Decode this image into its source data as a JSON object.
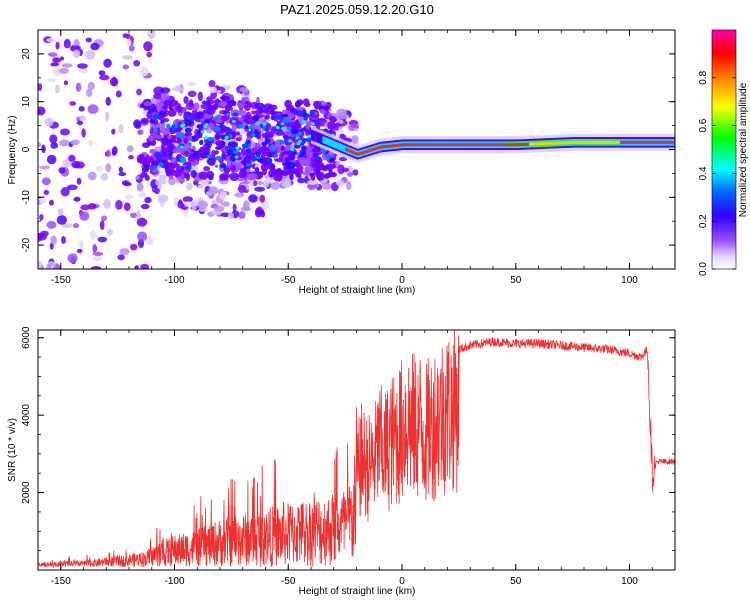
{
  "title": "PAZ1.2025.059.12.20.G10",
  "chart_data": [
    {
      "type": "heatmap",
      "title": "PAZ1.2025.059.12.20.G10",
      "xlabel": "Height of straight line (km)",
      "ylabel": "Frequency (Hz)",
      "xlim": [
        -160,
        120
      ],
      "ylim": [
        -25,
        25
      ],
      "xticks": [
        -150,
        -100,
        -50,
        0,
        50,
        100
      ],
      "xtick_labels": [
        "-150",
        "-100",
        "-50",
        "0",
        "50",
        "100"
      ],
      "yticks": [
        -20,
        -10,
        0,
        10,
        20
      ],
      "ytick_labels": [
        "-20",
        "-10",
        "0",
        "10",
        "20"
      ],
      "colorbar": {
        "label": "Normalized spectral amplitude",
        "range": [
          0,
          1
        ],
        "ticks": [
          0.0,
          0.2,
          0.4,
          0.6,
          0.8
        ],
        "tick_labels": [
          "0.0",
          "0.2",
          "0.4",
          "0.6",
          "0.8"
        ],
        "colors": [
          "#ffffff",
          "#e0ccff",
          "#8000ff",
          "#0000ff",
          "#00ffff",
          "#00ff00",
          "#ffff00",
          "#ff8000",
          "#ff0000",
          "#ff00aa"
        ]
      },
      "ridge": {
        "x": [
          -40,
          -30,
          -25,
          -20,
          -10,
          0,
          25,
          50,
          75,
          100,
          120
        ],
        "frequency": [
          3,
          1,
          0,
          -1,
          0.5,
          1,
          1,
          1,
          1.5,
          1.5,
          1.5
        ]
      }
    },
    {
      "type": "line",
      "xlabel": "Height of straight line (km)",
      "ylabel": "SNR (10 * v/v)",
      "xlim": [
        -160,
        120
      ],
      "ylim": [
        0,
        6200
      ],
      "xticks": [
        -150,
        -100,
        -50,
        0,
        50,
        100
      ],
      "xtick_labels": [
        "-150",
        "-100",
        "-50",
        "0",
        "50",
        "100"
      ],
      "yticks": [
        2000,
        4000,
        6000
      ],
      "ytick_labels": [
        "2000",
        "4000",
        "6000"
      ],
      "color": "#ee3030",
      "series": [
        {
          "x": [
            -160,
            -140,
            -120,
            -110,
            -100,
            -90,
            -80,
            -70,
            -60,
            -50,
            -40,
            -30,
            -25,
            -22,
            -20,
            -18,
            -15,
            -12,
            -10,
            -8,
            -5,
            -3,
            0,
            2,
            5,
            8,
            10,
            15,
            20,
            25,
            30,
            35,
            40,
            50,
            60,
            70,
            80,
            90,
            100,
            105,
            108,
            109,
            110,
            112,
            115,
            120
          ],
          "values": [
            100,
            150,
            300,
            400,
            600,
            700,
            900,
            1000,
            1100,
            1200,
            1300,
            1400,
            1500,
            1700,
            3000,
            3800,
            3500,
            3800,
            4300,
            4000,
            4400,
            4500,
            4800,
            5200,
            4900,
            5000,
            4600,
            5200,
            5500,
            5700,
            5800,
            5850,
            5900,
            5850,
            5850,
            5800,
            5750,
            5700,
            5600,
            5500,
            5700,
            4000,
            2500,
            2800,
            2800,
            2800
          ]
        }
      ]
    }
  ]
}
